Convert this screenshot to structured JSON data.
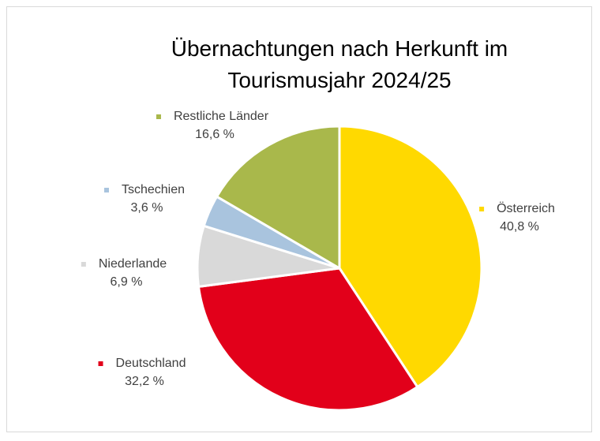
{
  "chart_data": {
    "type": "pie",
    "title": "Übernachtungen nach Herkunft im Tourismusjahr 2024/25",
    "categories": [
      "Österreich",
      "Deutschland",
      "Niederlande",
      "Tschechien",
      "Restliche Länder"
    ],
    "values": [
      40.8,
      32.2,
      6.9,
      3.6,
      16.6
    ],
    "value_labels": [
      "40,8 %",
      "32,2 %",
      "6,9 %",
      "3,6 %",
      "16,6 %"
    ],
    "colors": [
      "#ffd900",
      "#e2001a",
      "#d9d9d9",
      "#a9c4de",
      "#a9b84b"
    ]
  }
}
